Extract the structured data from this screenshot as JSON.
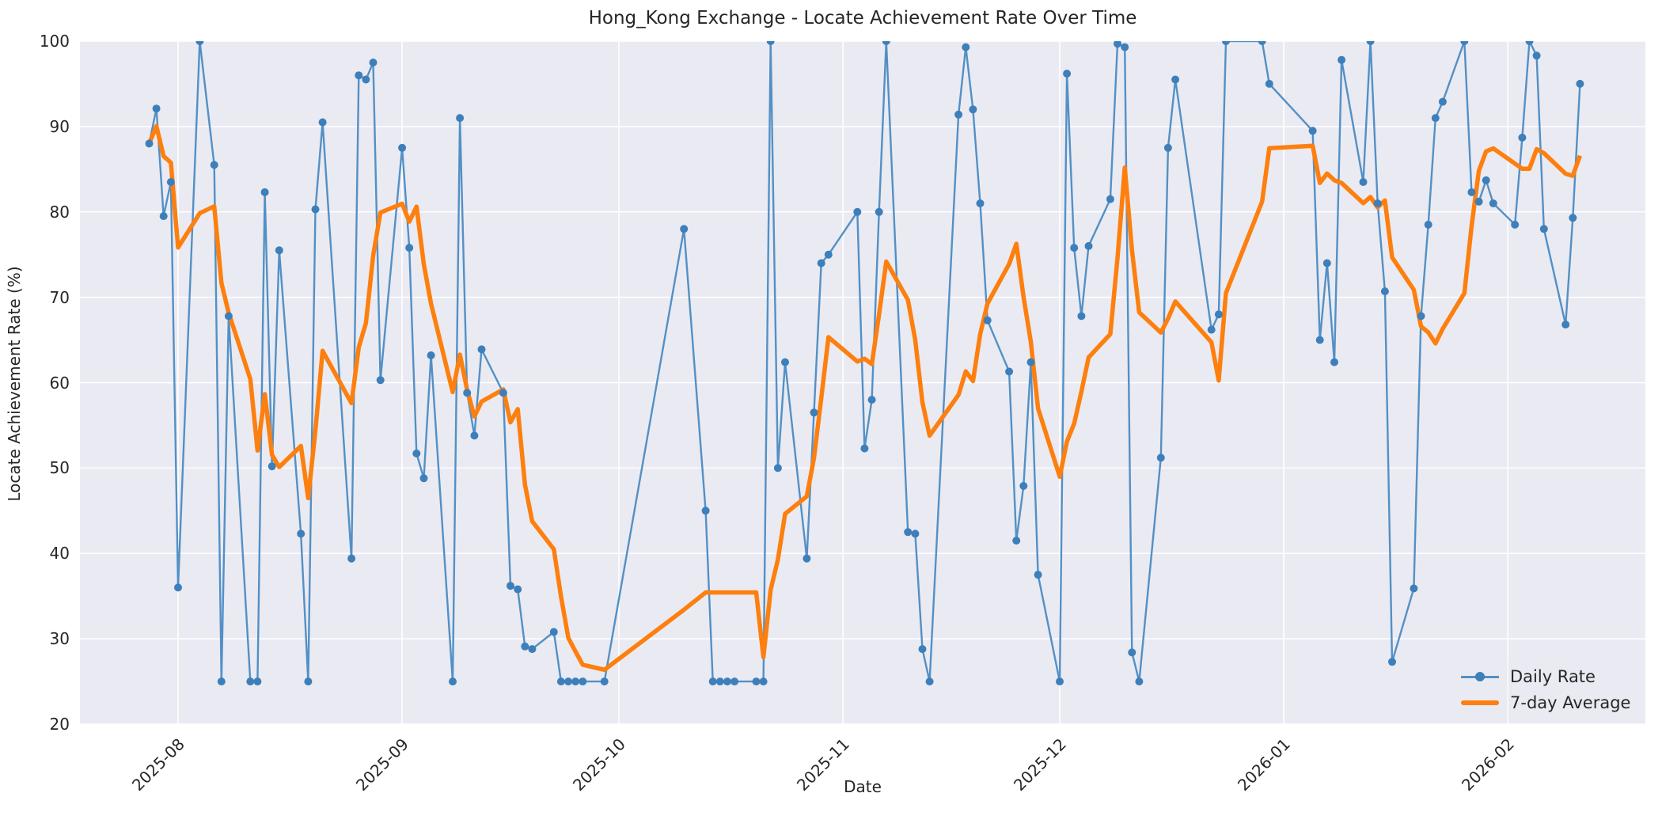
{
  "figure": {
    "title": "Hong_Kong Exchange - Locate Achievement Rate Over Time",
    "xlabel": "Date",
    "ylabel": "Locate Achievement Rate (%)"
  },
  "legend": {
    "position": "lower right",
    "items": [
      {
        "label": "Daily Rate",
        "sample": "line-with-marker-icon"
      },
      {
        "label": "7-day Average",
        "sample": "thick-line-icon"
      }
    ]
  },
  "colors": {
    "axes_background": "#eaeaf2",
    "figure_background": "#ffffff",
    "grid": "#ffffff",
    "daily_line": "#5390c5",
    "daily_marker": "#3d7fba",
    "avg_line": "#fd7f0e",
    "text": "#262626"
  },
  "chart_data": {
    "type": "line",
    "title": "Hong_Kong Exchange - Locate Achievement Rate Over Time",
    "xlabel": "Date",
    "ylabel": "Locate Achievement Rate (%)",
    "ylim": [
      20,
      100
    ],
    "y_ticks": [
      20,
      30,
      40,
      50,
      60,
      70,
      80,
      90,
      100
    ],
    "x_ticks": [
      {
        "date": "2025-08-01",
        "label": "2025-08"
      },
      {
        "date": "2025-09-01",
        "label": "2025-09"
      },
      {
        "date": "2025-10-01",
        "label": "2025-10"
      },
      {
        "date": "2025-11-01",
        "label": "2025-11"
      },
      {
        "date": "2025-12-01",
        "label": "2025-12"
      },
      {
        "date": "2026-01-01",
        "label": "2026-01"
      },
      {
        "date": "2026-02-01",
        "label": "2026-02"
      }
    ],
    "grid": true,
    "legend_position": "lower right",
    "value_floor": 25,
    "value_ceiling": 100,
    "series": [
      {
        "name": "Daily Rate",
        "style": "line+markers",
        "points": [
          [
            "2025-07-28",
            88.0
          ],
          [
            "2025-07-29",
            92.1
          ],
          [
            "2025-07-30",
            79.5
          ],
          [
            "2025-07-31",
            83.5
          ],
          [
            "2025-08-01",
            36.0
          ],
          [
            "2025-08-04",
            100.0
          ],
          [
            "2025-08-06",
            85.5
          ],
          [
            "2025-08-07",
            25.0
          ],
          [
            "2025-08-08",
            67.8
          ],
          [
            "2025-08-11",
            25.0
          ],
          [
            "2025-08-12",
            25.0
          ],
          [
            "2025-08-13",
            82.3
          ],
          [
            "2025-08-14",
            50.2
          ],
          [
            "2025-08-15",
            75.5
          ],
          [
            "2025-08-18",
            42.3
          ],
          [
            "2025-08-19",
            25.0
          ],
          [
            "2025-08-20",
            80.3
          ],
          [
            "2025-08-21",
            90.5
          ],
          [
            "2025-08-25",
            39.4
          ],
          [
            "2025-08-26",
            96.0
          ],
          [
            "2025-08-27",
            95.5
          ],
          [
            "2025-08-28",
            97.5
          ],
          [
            "2025-08-29",
            60.3
          ],
          [
            "2025-09-01",
            87.5
          ],
          [
            "2025-09-02",
            75.8
          ],
          [
            "2025-09-03",
            51.7
          ],
          [
            "2025-09-04",
            48.8
          ],
          [
            "2025-09-05",
            63.2
          ],
          [
            "2025-09-08",
            25.0
          ],
          [
            "2025-09-09",
            91.0
          ],
          [
            "2025-09-10",
            58.8
          ],
          [
            "2025-09-11",
            53.8
          ],
          [
            "2025-09-12",
            63.9
          ],
          [
            "2025-09-15",
            58.8
          ],
          [
            "2025-09-16",
            36.2
          ],
          [
            "2025-09-17",
            35.8
          ],
          [
            "2025-09-18",
            29.1
          ],
          [
            "2025-09-19",
            28.8
          ],
          [
            "2025-09-22",
            30.8
          ],
          [
            "2025-09-23",
            25.0
          ],
          [
            "2025-09-24",
            25.0
          ],
          [
            "2025-09-25",
            25.0
          ],
          [
            "2025-09-26",
            25.0
          ],
          [
            "2025-09-29",
            25.0
          ],
          [
            "2025-10-10",
            78.0
          ],
          [
            "2025-10-13",
            45.0
          ],
          [
            "2025-10-14",
            25.0
          ],
          [
            "2025-10-15",
            25.0
          ],
          [
            "2025-10-16",
            25.0
          ],
          [
            "2025-10-17",
            25.0
          ],
          [
            "2025-10-20",
            25.0
          ],
          [
            "2025-10-21",
            25.0
          ],
          [
            "2025-10-22",
            100.0
          ],
          [
            "2025-10-23",
            50.0
          ],
          [
            "2025-10-24",
            62.4
          ],
          [
            "2025-10-27",
            39.4
          ],
          [
            "2025-10-28",
            56.5
          ],
          [
            "2025-10-29",
            74.0
          ],
          [
            "2025-10-30",
            75.0
          ],
          [
            "2025-11-03",
            80.0
          ],
          [
            "2025-11-04",
            52.3
          ],
          [
            "2025-11-05",
            58.0
          ],
          [
            "2025-11-06",
            80.0
          ],
          [
            "2025-11-07",
            100.0
          ],
          [
            "2025-11-10",
            42.5
          ],
          [
            "2025-11-11",
            42.3
          ],
          [
            "2025-11-12",
            28.8
          ],
          [
            "2025-11-13",
            25.0
          ],
          [
            "2025-11-17",
            91.4
          ],
          [
            "2025-11-18",
            99.3
          ],
          [
            "2025-11-19",
            92.0
          ],
          [
            "2025-11-20",
            81.0
          ],
          [
            "2025-11-21",
            67.3
          ],
          [
            "2025-11-24",
            61.3
          ],
          [
            "2025-11-25",
            41.5
          ],
          [
            "2025-11-26",
            47.9
          ],
          [
            "2025-11-27",
            62.4
          ],
          [
            "2025-11-28",
            37.5
          ],
          [
            "2025-12-01",
            25.0
          ],
          [
            "2025-12-02",
            96.2
          ],
          [
            "2025-12-03",
            75.8
          ],
          [
            "2025-12-04",
            67.8
          ],
          [
            "2025-12-05",
            76.0
          ],
          [
            "2025-12-08",
            81.5
          ],
          [
            "2025-12-09",
            99.7
          ],
          [
            "2025-12-10",
            99.3
          ],
          [
            "2025-12-11",
            28.4
          ],
          [
            "2025-12-12",
            25.0
          ],
          [
            "2025-12-15",
            51.2
          ],
          [
            "2025-12-16",
            87.5
          ],
          [
            "2025-12-17",
            95.5
          ],
          [
            "2025-12-22",
            66.2
          ],
          [
            "2025-12-23",
            68.0
          ],
          [
            "2025-12-24",
            100.0
          ],
          [
            "2025-12-29",
            100.0
          ],
          [
            "2025-12-30",
            95.0
          ],
          [
            "2026-01-05",
            89.5
          ],
          [
            "2026-01-06",
            65.0
          ],
          [
            "2026-01-07",
            74.0
          ],
          [
            "2026-01-08",
            62.4
          ],
          [
            "2026-01-09",
            97.8
          ],
          [
            "2026-01-12",
            83.5
          ],
          [
            "2026-01-13",
            100.0
          ],
          [
            "2026-01-14",
            81.0
          ],
          [
            "2026-01-15",
            70.7
          ],
          [
            "2026-01-16",
            27.3
          ],
          [
            "2026-01-19",
            35.9
          ],
          [
            "2026-01-20",
            67.8
          ],
          [
            "2026-01-21",
            78.5
          ],
          [
            "2026-01-22",
            91.0
          ],
          [
            "2026-01-23",
            92.9
          ],
          [
            "2026-01-26",
            100.0
          ],
          [
            "2026-01-27",
            82.3
          ],
          [
            "2026-01-28",
            81.2
          ],
          [
            "2026-01-29",
            83.7
          ],
          [
            "2026-01-30",
            81.0
          ],
          [
            "2026-02-02",
            78.5
          ],
          [
            "2026-02-03",
            88.7
          ],
          [
            "2026-02-04",
            100.0
          ],
          [
            "2026-02-05",
            98.3
          ],
          [
            "2026-02-06",
            78.0
          ],
          [
            "2026-02-09",
            66.8
          ],
          [
            "2026-02-10",
            79.3
          ],
          [
            "2026-02-11",
            95.0
          ]
        ]
      },
      {
        "name": "7-day Average",
        "style": "thick-line",
        "derived_from": "Daily Rate",
        "method": "rolling mean of last 7 observations (min_periods=1)"
      }
    ]
  }
}
